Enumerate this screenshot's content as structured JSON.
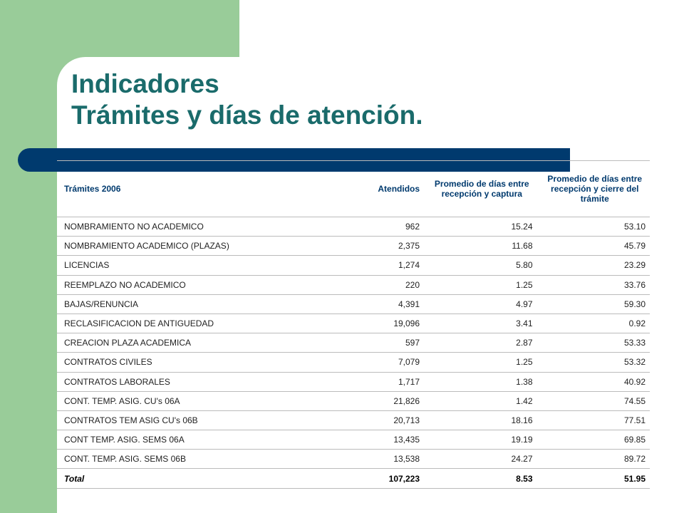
{
  "header": {
    "title": [
      "Indicadores",
      "Trámites y días de atención."
    ]
  },
  "table": {
    "columns": [
      "Trámites 2006",
      "Atendidos",
      "Promedio de días entre recepción y captura",
      "Promedio de días entre recepción y cierre del trámite"
    ],
    "rows": [
      [
        "NOMBRAMIENTO NO ACADEMICO",
        "962",
        "15.24",
        "53.10"
      ],
      [
        "NOMBRAMIENTO ACADEMICO (PLAZAS)",
        "2,375",
        "11.68",
        "45.79"
      ],
      [
        "LICENCIAS",
        "1,274",
        "5.80",
        "23.29"
      ],
      [
        "REEMPLAZO NO ACADEMICO",
        "220",
        "1.25",
        "33.76"
      ],
      [
        "BAJAS/RENUNCIA",
        "4,391",
        "4.97",
        "59.30"
      ],
      [
        "RECLASIFICACION DE ANTIGUEDAD",
        "19,096",
        "3.41",
        "0.92"
      ],
      [
        "CREACION PLAZA ACADEMICA",
        "597",
        "2.87",
        "53.33"
      ],
      [
        "CONTRATOS CIVILES",
        "7,079",
        "1.25",
        "53.32"
      ],
      [
        "CONTRATOS LABORALES",
        "1,717",
        "1.38",
        "40.92"
      ],
      [
        "CONT. TEMP. ASIG. CU's 06A",
        "21,826",
        "1.42",
        "74.55"
      ],
      [
        "CONTRATOS TEM ASIG CU's  06B",
        "20,713",
        "18.16",
        "77.51"
      ],
      [
        "CONT TEMP. ASIG. SEMS 06A",
        "13,435",
        "19.19",
        "69.85"
      ],
      [
        "CONT. TEMP. ASIG. SEMS  06B",
        "13,538",
        "24.27",
        "89.72"
      ]
    ],
    "total": [
      "Total",
      "107,223",
      "8.53",
      "51.95"
    ]
  }
}
